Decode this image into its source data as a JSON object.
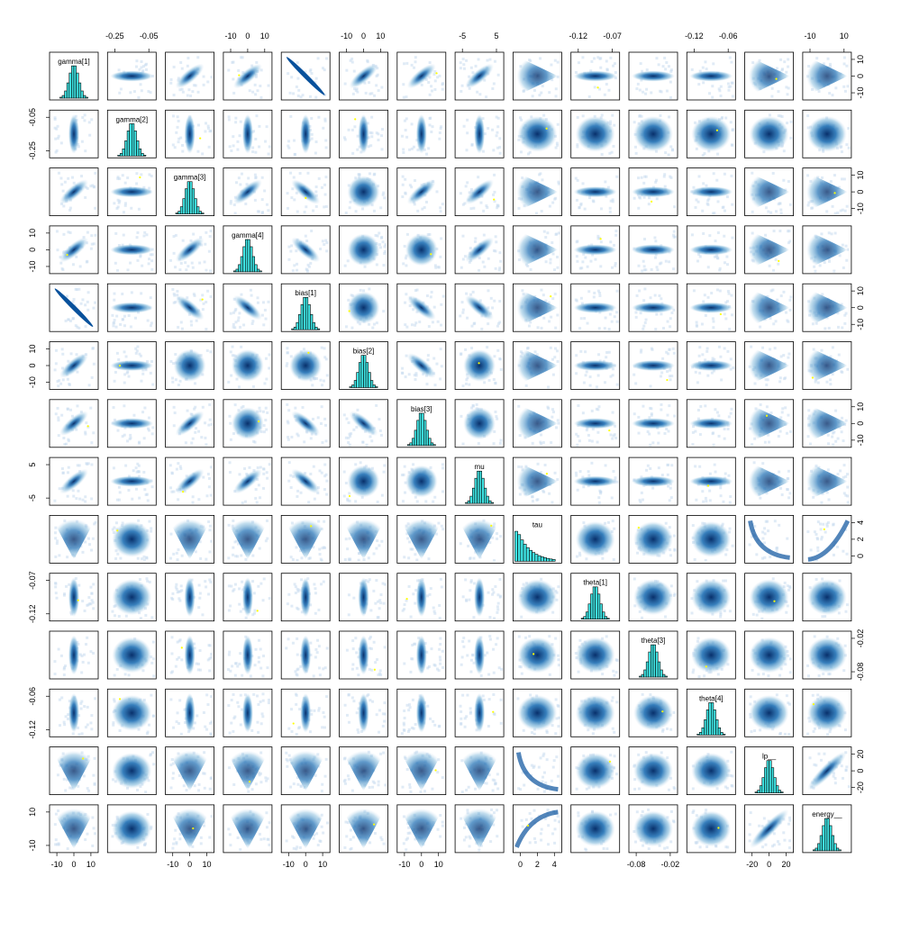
{
  "chart_data": {
    "type": "pairs",
    "variables": [
      "gamma[1]",
      "gamma[2]",
      "gamma[3]",
      "gamma[4]",
      "bias[1]",
      "bias[2]",
      "bias[3]",
      "mu",
      "tau",
      "theta[1]",
      "theta[3]",
      "theta[4]",
      "lp__",
      "energy__"
    ],
    "axis_ticks": {
      "top": [
        {
          "col": 1,
          "labels": [
            "-0.25",
            "-0.05"
          ]
        },
        {
          "col": 3,
          "labels": [
            "-10",
            "0",
            "10"
          ]
        },
        {
          "col": 5,
          "labels": [
            "-10",
            "0",
            "10"
          ]
        },
        {
          "col": 7,
          "labels": [
            "-5",
            "5"
          ]
        },
        {
          "col": 9,
          "labels": [
            "-0.12",
            "-0.07"
          ]
        },
        {
          "col": 11,
          "labels": [
            "-0.12",
            "-0.06"
          ]
        },
        {
          "col": 13,
          "labels": [
            "-10",
            "10"
          ]
        }
      ],
      "bottom": [
        {
          "col": 0,
          "labels": [
            "-10",
            "0",
            "10"
          ]
        },
        {
          "col": 2,
          "labels": [
            "-10",
            "0",
            "10"
          ]
        },
        {
          "col": 4,
          "labels": [
            "-10",
            "0",
            "10"
          ]
        },
        {
          "col": 6,
          "labels": [
            "-10",
            "0",
            "10"
          ]
        },
        {
          "col": 8,
          "labels": [
            "0",
            "2",
            "4"
          ]
        },
        {
          "col": 10,
          "labels": [
            "-0.08",
            "-0.02"
          ]
        },
        {
          "col": 12,
          "labels": [
            "-20",
            "0",
            "20"
          ]
        }
      ],
      "left": [
        {
          "row": 1,
          "labels": [
            "-0.25",
            "-0.05"
          ]
        },
        {
          "row": 3,
          "labels": [
            "-10",
            "0",
            "10"
          ]
        },
        {
          "row": 5,
          "labels": [
            "-10",
            "0",
            "10"
          ]
        },
        {
          "row": 7,
          "labels": [
            "-5",
            "5"
          ]
        },
        {
          "row": 9,
          "labels": [
            "-0.12",
            "-0.07"
          ]
        },
        {
          "row": 11,
          "labels": [
            "-0.12",
            "-0.06"
          ]
        },
        {
          "row": 13,
          "labels": [
            "-10",
            "10"
          ]
        }
      ],
      "right": [
        {
          "row": 0,
          "labels": [
            "-10",
            "0",
            "10"
          ]
        },
        {
          "row": 2,
          "labels": [
            "-10",
            "0",
            "10"
          ]
        },
        {
          "row": 4,
          "labels": [
            "-10",
            "0",
            "10"
          ]
        },
        {
          "row": 6,
          "labels": [
            "-10",
            "0",
            "10"
          ]
        },
        {
          "row": 8,
          "labels": [
            "0",
            "2",
            "4"
          ]
        },
        {
          "row": 10,
          "labels": [
            "-0.08",
            "-0.02"
          ]
        },
        {
          "row": 12,
          "labels": [
            "-20",
            "0",
            "20"
          ]
        }
      ]
    },
    "colors": {
      "histogram_fill": "#3fe4e4",
      "density": "#08519c",
      "density_light": "#c6dbef",
      "divergent": "#ffff00",
      "frame": "#000000"
    }
  }
}
